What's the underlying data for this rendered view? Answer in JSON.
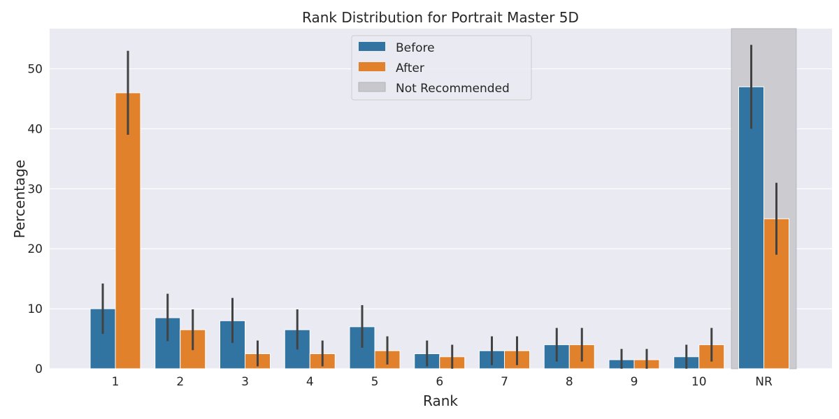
{
  "chart_data": {
    "type": "bar",
    "title": "Rank Distribution for Portrait Master 5D",
    "xlabel": "Rank",
    "ylabel": "Percentage",
    "categories": [
      "1",
      "2",
      "3",
      "4",
      "5",
      "6",
      "7",
      "8",
      "9",
      "10",
      "NR"
    ],
    "series": [
      {
        "name": "Before",
        "color": "#3274a1",
        "values": [
          10,
          8.5,
          8,
          6.5,
          7,
          2.5,
          3,
          4,
          1.5,
          2,
          47
        ],
        "err_low": [
          5.8,
          4.6,
          4.3,
          3.2,
          3.5,
          0.4,
          0.6,
          1.2,
          0,
          0,
          40
        ],
        "err_high": [
          14.2,
          12.5,
          11.8,
          9.9,
          10.6,
          4.7,
          5.4,
          6.8,
          3.3,
          4,
          54
        ]
      },
      {
        "name": "After",
        "color": "#e1812c",
        "values": [
          46,
          6.5,
          2.5,
          2.5,
          3,
          2,
          3,
          4,
          1.5,
          4,
          25
        ],
        "err_low": [
          39,
          3.1,
          0.4,
          0.4,
          0.7,
          0,
          0.6,
          1.2,
          0,
          1.2,
          19
        ],
        "err_high": [
          53,
          9.9,
          4.7,
          4.7,
          5.4,
          4.0,
          5.4,
          6.8,
          3.3,
          6.8,
          31
        ]
      }
    ],
    "highlight": {
      "category": "NR",
      "label": "Not Recommended",
      "color": "#c8c8cc"
    },
    "ylim": [
      0,
      56.7
    ],
    "yticks": [
      0,
      10,
      20,
      30,
      40,
      50
    ],
    "grid": true,
    "legend_position": "top-center",
    "background": "#eaeaf2",
    "error_bar_color": "#424242"
  }
}
